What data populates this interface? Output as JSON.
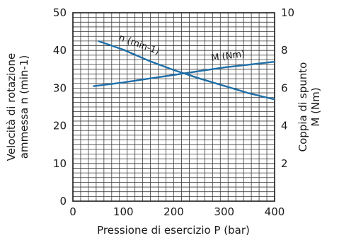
{
  "chart_data": {
    "type": "line",
    "xlabel": "Pressione di esercizio P (bar)",
    "ylabel_left": "Velocità di rotazione\nammessa n (min-1)",
    "ylabel_right": "Coppia di spunto\nM (Nm)",
    "x_ticks": [
      0,
      100,
      200,
      300,
      400
    ],
    "y_left_ticks": [
      0,
      10,
      20,
      30,
      40,
      50
    ],
    "y_right_ticks": [
      2,
      4,
      6,
      8,
      10
    ],
    "xlim": [
      0,
      400
    ],
    "ylim_left": [
      0,
      50
    ],
    "ylim_right": [
      0,
      10
    ],
    "grid": true,
    "series": [
      {
        "name": "n (min-1)",
        "axis": "left",
        "color": "#1f6fa8",
        "points": [
          [
            50,
            42.5
          ],
          [
            100,
            40.2
          ],
          [
            150,
            37.3
          ],
          [
            200,
            34.8
          ],
          [
            250,
            32.6
          ],
          [
            300,
            30.6
          ],
          [
            350,
            28.6
          ],
          [
            400,
            27.0
          ]
        ]
      },
      {
        "name": "M (Nm)",
        "axis": "right",
        "color": "#1f6fa8",
        "points": [
          [
            40,
            6.1
          ],
          [
            100,
            6.3
          ],
          [
            150,
            6.5
          ],
          [
            200,
            6.7
          ],
          [
            250,
            6.9
          ],
          [
            300,
            7.1
          ],
          [
            350,
            7.25
          ],
          [
            400,
            7.4
          ]
        ]
      }
    ]
  }
}
